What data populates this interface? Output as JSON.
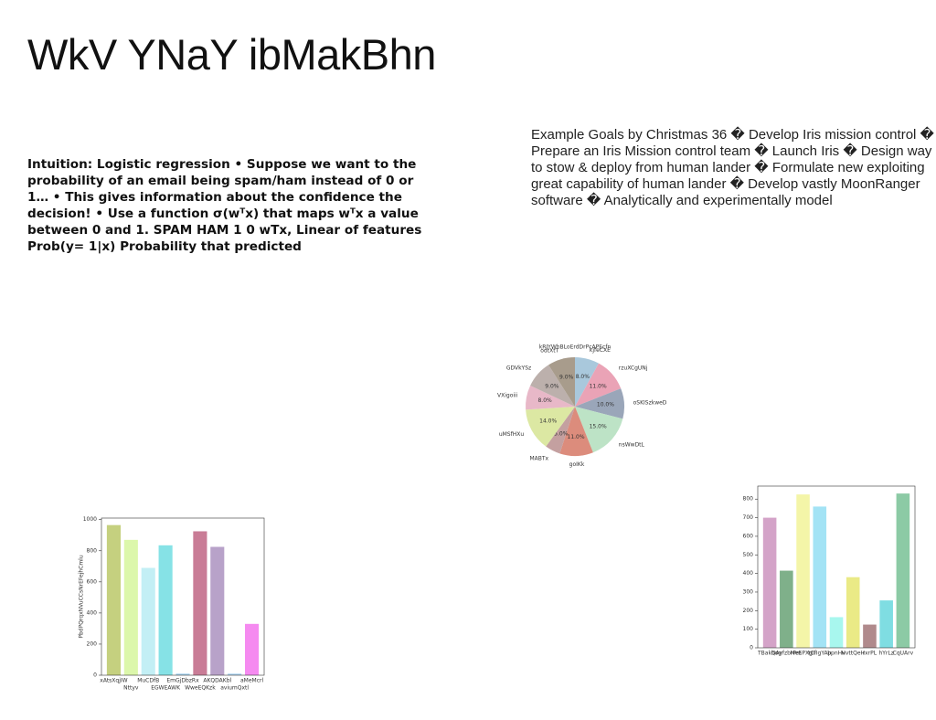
{
  "title": "WkV YNaY ibMakBhn",
  "left_text": "Intuition: Logistic regression • Suppose we want to the probability of an email being spam/ham instead of 0 or 1… • This gives information about the confidence the decision! • Use a function σ(wᵀx) that maps wᵀx a value between 0 and 1. SPAM HAM 1 0 wTx, Linear of features Prob(y= 1|x) Probability that predicted",
  "right_text": "Example Goals by Christmas 36 � Develop Iris mission control � Prepare an Iris Mission control team � Launch Iris � Design way to stow & deploy from human lander � Formulate new exploiting great capability of human lander � Develop vastly MoonRanger software � Analytically and experimentally model",
  "chart_data": [
    {
      "type": "pie",
      "title": "kRIYWhBLoErdDrPcAPEcfn",
      "categories": [
        "kjfeCXE",
        "rzuXCgUNj",
        "oSKISzkweD",
        "nsWwDtL",
        "goIKk",
        "MABTx",
        "uMSfHXu",
        "VXigoiii",
        "GDVkYSz",
        "odtXtT"
      ],
      "values": [
        8,
        11,
        10,
        15,
        11,
        5,
        14,
        8,
        9,
        9
      ],
      "value_labels": [
        "8.0%",
        "11.0%",
        "10.0%",
        "15.0%",
        "11.0%",
        "5.0%",
        "14.0%",
        "8.0%",
        "9.0%",
        "9.0%"
      ],
      "colors": [
        "#a9c8dc",
        "#eaa3b6",
        "#9aa6b9",
        "#bde3c6",
        "#dc8c7c",
        "#c4a0a0",
        "#dce8a3",
        "#e8b8c8",
        "#bcb0ac",
        "#a89c8c"
      ]
    },
    {
      "type": "bar",
      "ylabel": "PbdPQrqxNVuCCsNrEFejhCmlu",
      "categories": [
        "xAtsXqjIW",
        "Nttyv",
        "MuCDfB",
        "EGWEAWK",
        "EmGjDbzRx",
        "WweEQKzk",
        "AKQDAKbl",
        "aviumQxtl",
        "aMeMcrl"
      ],
      "values": [
        965,
        870,
        690,
        835,
        10,
        925,
        825,
        10,
        330
      ],
      "colors": [
        "#c5d07f",
        "#dcf7ab",
        "#c3eff5",
        "#86e2e6",
        "#a3d1ee",
        "#c97c96",
        "#b8a2c9",
        "#aad3ef",
        "#f58af0"
      ],
      "ylim": [
        0,
        1010
      ],
      "yticks": [
        0,
        200,
        400,
        600,
        800,
        1000
      ]
    },
    {
      "type": "bar",
      "categories": [
        "TBakbog",
        "QAvfzbrPm",
        "MeEPXgII",
        "tCfIgYAp",
        "bpnHv",
        "HvttQeH",
        "rxrPL",
        "hYrLz",
        "CqUArv"
      ],
      "values": [
        700,
        415,
        825,
        760,
        165,
        380,
        125,
        255,
        830
      ],
      "colors": [
        "#d4a3c8",
        "#7fb08a",
        "#f4f5a8",
        "#a3e3f5",
        "#a8f7ee",
        "#eaea86",
        "#b08a8c",
        "#7fdde2",
        "#8ccaa5"
      ],
      "ylim": [
        0,
        870
      ],
      "yticks": [
        0,
        100,
        200,
        300,
        400,
        500,
        600,
        700,
        800
      ]
    }
  ]
}
